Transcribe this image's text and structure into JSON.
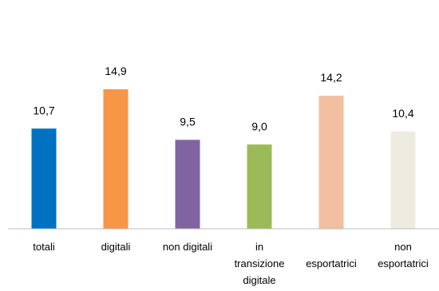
{
  "chart_data": {
    "type": "bar",
    "categories": [
      [
        "totali"
      ],
      [
        "digitali"
      ],
      [
        "non digitali"
      ],
      [
        "in",
        "transizione",
        "digitale"
      ],
      [
        "",
        "esportatrici"
      ],
      [
        "non",
        "esportatrici"
      ]
    ],
    "values": [
      10.7,
      14.9,
      9.5,
      9.0,
      14.2,
      10.4
    ],
    "value_labels": [
      "10,7",
      "14,9",
      "9,5",
      "9,0",
      "14,2",
      "10,4"
    ],
    "colors": [
      "#0070c0",
      "#f79646",
      "#8064a2",
      "#9bbb59",
      "#f2bfa0",
      "#eeece1"
    ],
    "ylim": [
      0,
      16
    ],
    "grid": false,
    "legend": "none",
    "axis_color": "#bfbfbf"
  }
}
